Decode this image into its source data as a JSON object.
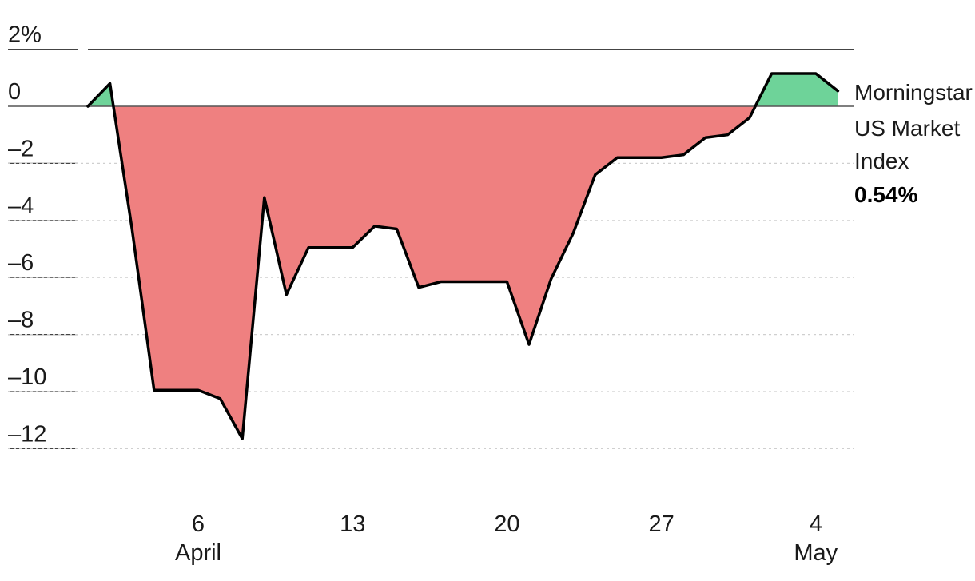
{
  "chart_data": {
    "type": "area",
    "title": "",
    "xlabel": "",
    "ylabel": "",
    "ylim": [
      -12,
      2
    ],
    "grid": "horizontal dotted",
    "y_ticks": [
      {
        "value": 2,
        "label": "2%"
      },
      {
        "value": 0,
        "label": "0"
      },
      {
        "value": -2,
        "label": "–2"
      },
      {
        "value": -4,
        "label": "–4"
      },
      {
        "value": -6,
        "label": "–6"
      },
      {
        "value": -8,
        "label": "–8"
      },
      {
        "value": -10,
        "label": "–10"
      },
      {
        "value": -12,
        "label": "–12"
      }
    ],
    "x_ticks": [
      {
        "date": "2025-04-06",
        "label": "6",
        "sublabel": "April"
      },
      {
        "date": "2025-04-13",
        "label": "13",
        "sublabel": ""
      },
      {
        "date": "2025-04-20",
        "label": "20",
        "sublabel": ""
      },
      {
        "date": "2025-04-27",
        "label": "27",
        "sublabel": ""
      },
      {
        "date": "2025-05-04",
        "label": "4",
        "sublabel": "May"
      }
    ],
    "series": [
      {
        "name": "Morningstar US Market Index",
        "last_value_label": "0.54%",
        "points": [
          {
            "date": "2025-04-01",
            "value": 0.0
          },
          {
            "date": "2025-04-02",
            "value": 0.8
          },
          {
            "date": "2025-04-03",
            "value": -4.3
          },
          {
            "date": "2025-04-04",
            "value": -9.95
          },
          {
            "date": "2025-04-05",
            "value": -9.95
          },
          {
            "date": "2025-04-06",
            "value": -9.95
          },
          {
            "date": "2025-04-07",
            "value": -10.25
          },
          {
            "date": "2025-04-08",
            "value": -11.65
          },
          {
            "date": "2025-04-09",
            "value": -3.2
          },
          {
            "date": "2025-04-10",
            "value": -6.6
          },
          {
            "date": "2025-04-11",
            "value": -4.95
          },
          {
            "date": "2025-04-12",
            "value": -4.95
          },
          {
            "date": "2025-04-13",
            "value": -4.95
          },
          {
            "date": "2025-04-14",
            "value": -4.2
          },
          {
            "date": "2025-04-15",
            "value": -4.3
          },
          {
            "date": "2025-04-16",
            "value": -6.35
          },
          {
            "date": "2025-04-17",
            "value": -6.15
          },
          {
            "date": "2025-04-18",
            "value": -6.15
          },
          {
            "date": "2025-04-19",
            "value": -6.15
          },
          {
            "date": "2025-04-20",
            "value": -6.15
          },
          {
            "date": "2025-04-21",
            "value": -8.35
          },
          {
            "date": "2025-04-22",
            "value": -6.05
          },
          {
            "date": "2025-04-23",
            "value": -4.45
          },
          {
            "date": "2025-04-24",
            "value": -2.4
          },
          {
            "date": "2025-04-25",
            "value": -1.8
          },
          {
            "date": "2025-04-26",
            "value": -1.8
          },
          {
            "date": "2025-04-27",
            "value": -1.8
          },
          {
            "date": "2025-04-28",
            "value": -1.7
          },
          {
            "date": "2025-04-29",
            "value": -1.1
          },
          {
            "date": "2025-04-30",
            "value": -1.0
          },
          {
            "date": "2025-05-01",
            "value": -0.4
          },
          {
            "date": "2025-05-02",
            "value": 1.15
          },
          {
            "date": "2025-05-03",
            "value": 1.15
          },
          {
            "date": "2025-05-04",
            "value": 1.15
          },
          {
            "date": "2025-05-05",
            "value": 0.54
          }
        ]
      }
    ],
    "legend": {
      "placement": "right",
      "lines": [
        "Morningstar",
        "US Market",
        "Index"
      ],
      "value": "0.54%"
    },
    "colors": {
      "positive_fill": "#6ed399",
      "negative_fill": "#ef8080",
      "line": "#000000",
      "zero_line": "#555555",
      "grid": "#cfcfcf"
    }
  }
}
